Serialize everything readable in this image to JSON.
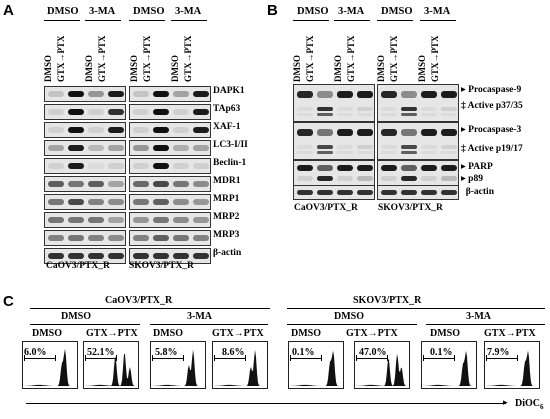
{
  "panelA": {
    "letter": "A",
    "groups": [
      {
        "top_dmso": "DMSO",
        "top_3ma": "3-MA",
        "lanes": [
          "DMSO",
          "GTX→PTX",
          "DMSO",
          "GTX→PTX"
        ],
        "cell_line": "CaOV3/PTX_R"
      },
      {
        "top_dmso": "DMSO",
        "top_3ma": "3-MA",
        "lanes": [
          "DMSO",
          "GTX→PTX",
          "DMSO",
          "GTX→PTX"
        ],
        "cell_line": "SKOV3/PTX_R"
      }
    ],
    "proteins": [
      "DAPK1",
      "TAp63",
      "XAF-1",
      "LC3-I/II",
      "Beclin-1",
      "MDR1",
      "MRP1",
      "MRP2",
      "MRP3",
      "β-actin"
    ]
  },
  "panelB": {
    "letter": "B",
    "groups": [
      {
        "top_dmso": "DMSO",
        "top_3ma": "3-MA",
        "lanes": [
          "DMSO",
          "GTX→PTX",
          "DMSO",
          "GTX→PTX"
        ],
        "cell_line": "CaOV3/PTX_R"
      },
      {
        "top_dmso": "DMSO",
        "top_3ma": "3-MA",
        "lanes": [
          "DMSO",
          "GTX→PTX",
          "DMSO",
          "GTX→PTX"
        ],
        "cell_line": "SKOV3/PTX_R"
      }
    ],
    "labels": [
      "Procaspase-9",
      "Active p37/35",
      "Procaspase-3",
      "Active p19/17",
      "PARP",
      "p89",
      "β-actin"
    ]
  },
  "panelC": {
    "letter": "C",
    "cell_lines": [
      "CaOV3/PTX_R",
      "SKOV3/PTX_R"
    ],
    "treatments": [
      "DMSO",
      "3-MA",
      "DMSO",
      "3-MA"
    ],
    "conditions": [
      "DMSO",
      "GTX→PTX",
      "DMSO",
      "GTX→PTX",
      "DMSO",
      "GTX→PTX",
      "DMSO",
      "GTX→PTX"
    ],
    "percentages": [
      "6.0%",
      "52.1%",
      "5.8%",
      "8.6%",
      "0.1%",
      "47.0%",
      "0.1%",
      "7.9%"
    ],
    "axis_label": "DiOC",
    "axis_sub": "6"
  }
}
